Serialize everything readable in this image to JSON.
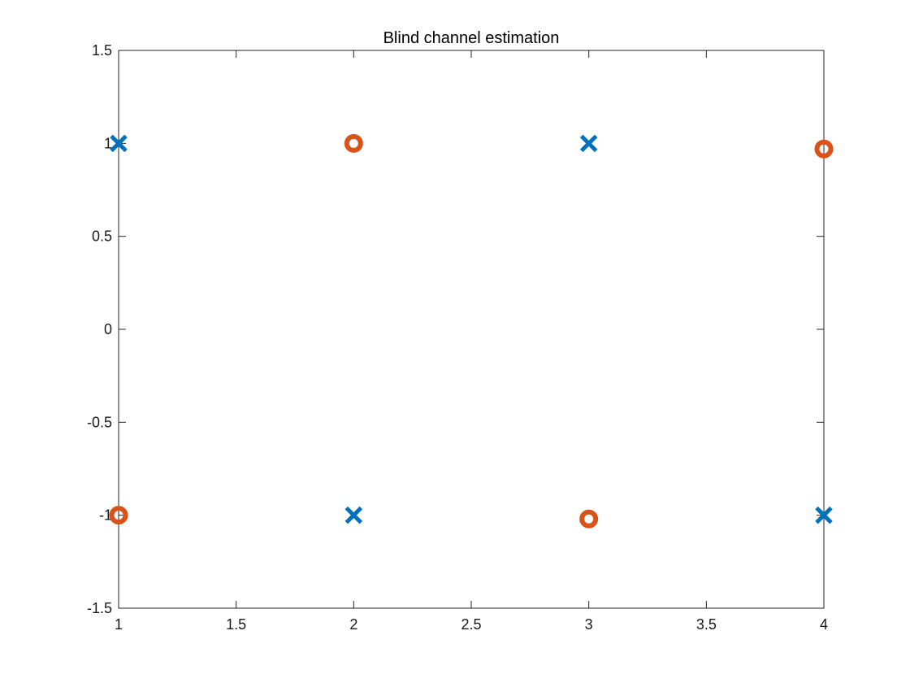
{
  "chart_data": {
    "type": "scatter",
    "title": "Blind channel estimation",
    "xlabel": "",
    "ylabel": "",
    "xlim": [
      1,
      4
    ],
    "ylim": [
      -1.5,
      1.5
    ],
    "xticks": [
      1,
      1.5,
      2,
      2.5,
      3,
      3.5,
      4
    ],
    "xtick_labels": [
      "1",
      "1.5",
      "2",
      "2.5",
      "3",
      "3.5",
      "4"
    ],
    "yticks": [
      -1.5,
      -1,
      -0.5,
      0,
      0.5,
      1,
      1.5
    ],
    "ytick_labels": [
      "-1.5",
      "-1",
      "-0.5",
      "0",
      "0.5",
      "1",
      "1.5"
    ],
    "grid": false,
    "box": true,
    "series": [
      {
        "marker": "x",
        "color": "#0072BD",
        "x": [
          1,
          2,
          3,
          4
        ],
        "y": [
          1,
          -1,
          1,
          -1
        ]
      },
      {
        "marker": "o",
        "color": "#D95319",
        "x": [
          1,
          2,
          3,
          4
        ],
        "y": [
          -1,
          1,
          -1.02,
          0.97
        ]
      }
    ]
  }
}
